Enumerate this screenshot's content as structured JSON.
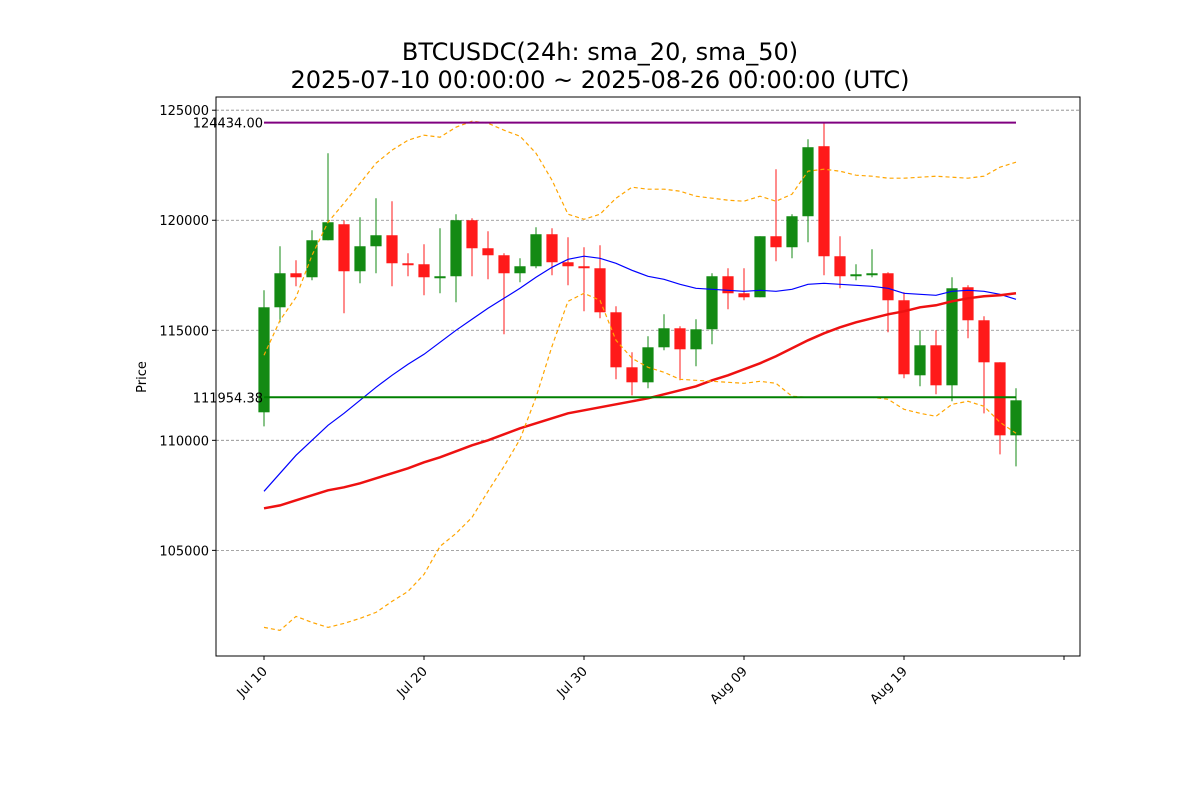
{
  "chart_data": {
    "type": "candlestick",
    "title": [
      "BTCUSDC(24h: sma_20, sma_50)",
      "2025-07-10 00:00:00 ~ 2025-08-26 00:00:00 (UTC)"
    ],
    "ylabel": "Price",
    "x": [
      "2025-07-10",
      "2025-07-11",
      "2025-07-12",
      "2025-07-13",
      "2025-07-14",
      "2025-07-15",
      "2025-07-16",
      "2025-07-17",
      "2025-07-18",
      "2025-07-19",
      "2025-07-20",
      "2025-07-21",
      "2025-07-22",
      "2025-07-23",
      "2025-07-24",
      "2025-07-25",
      "2025-07-26",
      "2025-07-27",
      "2025-07-28",
      "2025-07-29",
      "2025-07-30",
      "2025-07-31",
      "2025-08-01",
      "2025-08-02",
      "2025-08-03",
      "2025-08-04",
      "2025-08-05",
      "2025-08-06",
      "2025-08-07",
      "2025-08-08",
      "2025-08-09",
      "2025-08-10",
      "2025-08-11",
      "2025-08-12",
      "2025-08-13",
      "2025-08-14",
      "2025-08-15",
      "2025-08-16",
      "2025-08-17",
      "2025-08-18",
      "2025-08-19",
      "2025-08-20",
      "2025-08-21",
      "2025-08-22",
      "2025-08-23",
      "2025-08-24",
      "2025-08-25",
      "2025-08-26"
    ],
    "open": [
      111273,
      116045,
      117591,
      117409,
      119091,
      119818,
      117682,
      118818,
      119318,
      118045,
      118000,
      117364,
      117455,
      120000,
      118727,
      118409,
      117591,
      117909,
      119364,
      118091,
      117909,
      117818,
      115818,
      113318,
      112636,
      114227,
      115091,
      114136,
      115045,
      117455,
      116682,
      116500,
      119273,
      118773,
      120182,
      123364,
      118364,
      117455,
      117500,
      117591,
      116364,
      112955,
      114318,
      112500,
      116955,
      115455,
      113545,
      110227
    ],
    "high": [
      116818,
      118818,
      118182,
      119545,
      123045,
      120000,
      120136,
      121000,
      120864,
      118500,
      118909,
      119636,
      120273,
      120091,
      119500,
      118500,
      118273,
      119682,
      119636,
      119227,
      118773,
      118864,
      116091,
      114000,
      114727,
      115727,
      115182,
      115500,
      117591,
      117818,
      117818,
      119273,
      122318,
      120273,
      123682,
      124434,
      119273,
      118000,
      118682,
      117636,
      116727,
      115000,
      115000,
      117409,
      117045,
      115636,
      113545,
      112364
    ],
    "low": [
      110636,
      115364,
      117000,
      117273,
      119091,
      115773,
      117136,
      117591,
      117000,
      117455,
      116591,
      116682,
      116273,
      117455,
      117318,
      114818,
      117182,
      117818,
      117500,
      117045,
      115864,
      115545,
      112773,
      112045,
      112364,
      114091,
      112727,
      113364,
      114364,
      115955,
      116364,
      116500,
      118136,
      118273,
      119000,
      117500,
      116909,
      117273,
      117409,
      114909,
      112818,
      112455,
      112091,
      111773,
      114636,
      111227,
      109364,
      108818
    ],
    "close": [
      116045,
      117591,
      117409,
      119091,
      119909,
      117682,
      118818,
      119318,
      118045,
      117955,
      117409,
      117455,
      120000,
      118727,
      118409,
      117591,
      117909,
      119364,
      118091,
      117909,
      117818,
      115818,
      113318,
      112636,
      114227,
      115091,
      114136,
      115045,
      117455,
      116682,
      116500,
      119273,
      118773,
      120182,
      123318,
      118364,
      117455,
      117545,
      117591,
      116364,
      113000,
      114318,
      112500,
      116909,
      115455,
      113545,
      110227,
      111818
    ],
    "up_color": "#138a13",
    "down_color": "#ff1a1a",
    "series": [
      {
        "name": "sma_20",
        "color": "#0000ff",
        "width": 1.2,
        "dash": false,
        "values": [
          107682,
          108500,
          109318,
          110000,
          110682,
          111227,
          111818,
          112409,
          112955,
          113455,
          113909,
          114455,
          115000,
          115500,
          116000,
          116455,
          116909,
          117409,
          117864,
          118227,
          118364,
          118273,
          118045,
          117727,
          117455,
          117318,
          117091,
          116909,
          116864,
          116818,
          116773,
          116818,
          116773,
          116864,
          117091,
          117136,
          117091,
          117045,
          117000,
          116909,
          116682,
          116636,
          116591,
          116773,
          116818,
          116773,
          116636,
          116409
        ]
      },
      {
        "name": "sma_50",
        "color": "#ee1111",
        "width": 2.5,
        "dash": false,
        "values": [
          106909,
          107045,
          107273,
          107500,
          107727,
          107864,
          108045,
          108273,
          108500,
          108727,
          109000,
          109227,
          109500,
          109773,
          110000,
          110273,
          110545,
          110773,
          111000,
          111227,
          111364,
          111500,
          111636,
          111773,
          111909,
          112091,
          112273,
          112455,
          112727,
          112955,
          113227,
          113500,
          113818,
          114182,
          114545,
          114864,
          115136,
          115364,
          115545,
          115727,
          115864,
          116045,
          116136,
          116318,
          116455,
          116545,
          116591,
          116682
        ]
      },
      {
        "color": "#ffa500",
        "width": 1.2,
        "dash": true,
        "values": [
          113864,
          115455,
          116500,
          118409,
          119909,
          120773,
          121682,
          122591,
          123182,
          123636,
          123864,
          123773,
          124227,
          124500,
          124409,
          124091,
          123818,
          123045,
          121818,
          120273,
          120045,
          120273,
          121000,
          121500,
          121409,
          121409,
          121318,
          121091,
          121000,
          120909,
          120864,
          121091,
          120864,
          121182,
          122227,
          122318,
          122227,
          122045,
          122000,
          121909,
          121909,
          121955,
          122000,
          121955,
          121909,
          122000,
          122409,
          122636
        ]
      },
      {
        "color": "#ffa500",
        "width": 1.2,
        "dash": true,
        "values": [
          101500,
          101364,
          102000,
          101727,
          101500,
          101682,
          101909,
          102182,
          102682,
          103136,
          103909,
          105182,
          105773,
          106500,
          107682,
          108818,
          110045,
          111955,
          114273,
          116318,
          116682,
          116364,
          114545,
          113727,
          113318,
          113091,
          112773,
          112727,
          112682,
          112636,
          112591,
          112682,
          112591,
          112000,
          111955,
          111955,
          111955,
          111955,
          111955,
          111864,
          111409,
          111227,
          111091,
          111636,
          111773,
          111545,
          110818,
          110318
        ]
      }
    ],
    "hlines": [
      {
        "value": 124434,
        "label": "124434.00",
        "color": "#800080"
      },
      {
        "value": 111954.38,
        "label": "111954.38",
        "color": "#008000"
      }
    ],
    "xlim": [
      "2025-07-07",
      "2025-08-30"
    ],
    "xticks": [
      {
        "value": "2025-07-10",
        "label": "Jul 10"
      },
      {
        "value": "2025-07-20",
        "label": "Jul 20"
      },
      {
        "value": "2025-07-30",
        "label": "Jul 30"
      },
      {
        "value": "2025-08-09",
        "label": "Aug 09"
      },
      {
        "value": "2025-08-19",
        "label": "Aug 19"
      },
      {
        "value": "2025-08-29",
        "label": null
      }
    ],
    "ylim": [
      100200,
      125600
    ],
    "yticks": [
      105000,
      110000,
      115000,
      120000,
      125000
    ],
    "grid": true
  }
}
